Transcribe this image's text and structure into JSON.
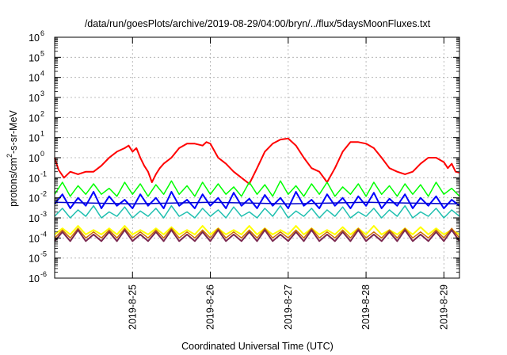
{
  "chart_data": {
    "type": "line",
    "title": "/data/run/goesPlots/archive/2019-08-29/04:00/bryn/../flux/5daysMoonFluxes.txt",
    "xlabel": "Coordinated Universal Time (UTC)",
    "ylabel": {
      "pre": "protons/cm",
      "sup": "2",
      "post": "-s-sr-MeV"
    },
    "yscale": "log",
    "ylim_exp": [
      -6,
      6
    ],
    "ytick_exps": [
      -6,
      -5,
      -4,
      -3,
      -2,
      -1,
      0,
      1,
      2,
      3,
      4,
      5,
      6
    ],
    "ytick_base": "10",
    "xlim": [
      0,
      5.2
    ],
    "xticks": [
      {
        "x": 1,
        "label": "2019-8-25"
      },
      {
        "x": 2,
        "label": "2019-8-26"
      },
      {
        "x": 3,
        "label": "2019-8-27"
      },
      {
        "x": 4,
        "label": "2019-8-28"
      },
      {
        "x": 5,
        "label": "2019-8-29"
      }
    ],
    "grid": true,
    "series": [
      {
        "color": "#ff0000",
        "width": 2,
        "x": [
          0,
          0.05,
          0.12,
          0.2,
          0.3,
          0.4,
          0.5,
          0.6,
          0.7,
          0.8,
          0.9,
          0.95,
          1.0,
          1.05,
          1.1,
          1.15,
          1.2,
          1.25,
          1.3,
          1.35,
          1.4,
          1.5,
          1.6,
          1.7,
          1.8,
          1.9,
          1.95,
          2.0,
          2.1,
          2.2,
          2.3,
          2.4,
          2.5,
          2.6,
          2.7,
          2.8,
          2.9,
          3.0,
          3.1,
          3.2,
          3.3,
          3.4,
          3.5,
          3.6,
          3.7,
          3.8,
          3.9,
          4.0,
          4.1,
          4.2,
          4.3,
          4.4,
          4.5,
          4.6,
          4.7,
          4.8,
          4.9,
          5.0,
          5.05,
          5.1,
          5.15,
          5.2
        ],
        "y": [
          1.0,
          0.25,
          0.1,
          0.2,
          0.15,
          0.2,
          0.2,
          0.4,
          1.0,
          2.0,
          3.0,
          4.0,
          2.0,
          3.0,
          1.0,
          0.4,
          0.2,
          0.06,
          0.15,
          0.3,
          0.5,
          1.0,
          3.0,
          5.0,
          5.0,
          4.0,
          6.0,
          5.0,
          1.0,
          0.5,
          0.2,
          0.1,
          0.05,
          0.3,
          2.0,
          5.0,
          8.0,
          9.0,
          4.0,
          1.0,
          0.3,
          0.2,
          0.06,
          0.3,
          2.0,
          6.0,
          6.0,
          5.0,
          3.0,
          1.0,
          0.3,
          0.2,
          0.15,
          0.2,
          0.5,
          1.0,
          1.0,
          0.6,
          0.3,
          0.5,
          0.2,
          0.18
        ]
      },
      {
        "color": "#00ff00",
        "width": 1.5,
        "x": [
          0,
          0.1,
          0.2,
          0.3,
          0.4,
          0.5,
          0.6,
          0.7,
          0.8,
          0.9,
          1.0,
          1.1,
          1.2,
          1.3,
          1.4,
          1.5,
          1.6,
          1.7,
          1.8,
          1.9,
          2.0,
          2.1,
          2.2,
          2.3,
          2.4,
          2.5,
          2.6,
          2.7,
          2.8,
          2.9,
          3.0,
          3.1,
          3.2,
          3.3,
          3.4,
          3.5,
          3.6,
          3.7,
          3.8,
          3.9,
          4.0,
          4.1,
          4.2,
          4.3,
          4.4,
          4.5,
          4.6,
          4.7,
          4.8,
          4.9,
          5.0,
          5.1,
          5.2
        ],
        "y": [
          0.015,
          0.06,
          0.012,
          0.04,
          0.015,
          0.05,
          0.015,
          0.03,
          0.012,
          0.06,
          0.015,
          0.05,
          0.012,
          0.045,
          0.015,
          0.07,
          0.015,
          0.04,
          0.012,
          0.06,
          0.015,
          0.05,
          0.015,
          0.035,
          0.012,
          0.06,
          0.015,
          0.045,
          0.012,
          0.07,
          0.015,
          0.04,
          0.012,
          0.05,
          0.015,
          0.06,
          0.012,
          0.035,
          0.015,
          0.05,
          0.012,
          0.06,
          0.015,
          0.04,
          0.012,
          0.05,
          0.015,
          0.045,
          0.012,
          0.06,
          0.015,
          0.03,
          0.012
        ]
      },
      {
        "color": "#0000ff",
        "width": 2,
        "x": [
          0,
          0.1,
          0.2,
          0.3,
          0.4,
          0.5,
          0.6,
          0.7,
          0.8,
          0.9,
          1.0,
          1.1,
          1.2,
          1.3,
          1.4,
          1.5,
          1.6,
          1.7,
          1.8,
          1.9,
          2.0,
          2.1,
          2.2,
          2.3,
          2.4,
          2.5,
          2.6,
          2.7,
          2.8,
          2.9,
          3.0,
          3.1,
          3.2,
          3.3,
          3.4,
          3.5,
          3.6,
          3.7,
          3.8,
          3.9,
          4.0,
          4.1,
          4.2,
          4.3,
          4.4,
          4.5,
          4.6,
          4.7,
          4.8,
          4.9,
          5.0,
          5.1,
          5.2
        ],
        "y": [
          0.005,
          0.015,
          0.003,
          0.01,
          0.004,
          0.02,
          0.003,
          0.012,
          0.004,
          0.008,
          0.003,
          0.015,
          0.004,
          0.01,
          0.003,
          0.02,
          0.004,
          0.008,
          0.003,
          0.015,
          0.004,
          0.01,
          0.003,
          0.018,
          0.004,
          0.009,
          0.003,
          0.014,
          0.004,
          0.01,
          0.003,
          0.02,
          0.004,
          0.008,
          0.003,
          0.015,
          0.004,
          0.01,
          0.003,
          0.012,
          0.004,
          0.018,
          0.003,
          0.009,
          0.004,
          0.015,
          0.003,
          0.01,
          0.004,
          0.012,
          0.003,
          0.008,
          0.004
        ]
      },
      {
        "color": "#0000cc",
        "width": 1.5,
        "x": [
          0,
          1,
          2,
          3,
          4,
          5.2
        ],
        "y": [
          0.006,
          0.005,
          0.006,
          0.005,
          0.006,
          0.005
        ]
      },
      {
        "color": "#20c0b0",
        "width": 1.5,
        "x": [
          0,
          0.1,
          0.2,
          0.3,
          0.4,
          0.5,
          0.6,
          0.7,
          0.8,
          0.9,
          1.0,
          1.1,
          1.2,
          1.3,
          1.4,
          1.5,
          1.6,
          1.7,
          1.8,
          1.9,
          2.0,
          2.1,
          2.2,
          2.3,
          2.4,
          2.5,
          2.6,
          2.7,
          2.8,
          2.9,
          3.0,
          3.1,
          3.2,
          3.3,
          3.4,
          3.5,
          3.6,
          3.7,
          3.8,
          3.9,
          4.0,
          4.1,
          4.2,
          4.3,
          4.4,
          4.5,
          4.6,
          4.7,
          4.8,
          4.9,
          5.0,
          5.1,
          5.2
        ],
        "y": [
          0.0012,
          0.003,
          0.001,
          0.0025,
          0.0012,
          0.004,
          0.001,
          0.002,
          0.0012,
          0.0035,
          0.001,
          0.0022,
          0.0012,
          0.003,
          0.001,
          0.004,
          0.0012,
          0.002,
          0.001,
          0.003,
          0.0012,
          0.0025,
          0.001,
          0.0035,
          0.0012,
          0.002,
          0.001,
          0.003,
          0.0012,
          0.004,
          0.001,
          0.0022,
          0.0012,
          0.003,
          0.001,
          0.0025,
          0.0012,
          0.0035,
          0.001,
          0.002,
          0.0012,
          0.003,
          0.001,
          0.0025,
          0.0012,
          0.004,
          0.001,
          0.002,
          0.0012,
          0.003,
          0.001,
          0.0025,
          0.0012
        ]
      },
      {
        "color": "#ffff00",
        "width": 2,
        "x": [
          0,
          0.1,
          0.2,
          0.3,
          0.4,
          0.5,
          0.6,
          0.7,
          0.8,
          0.9,
          1.0,
          1.1,
          1.2,
          1.3,
          1.4,
          1.5,
          1.6,
          1.7,
          1.8,
          1.9,
          2.0,
          2.1,
          2.2,
          2.3,
          2.4,
          2.5,
          2.6,
          2.7,
          2.8,
          2.9,
          3.0,
          3.1,
          3.2,
          3.3,
          3.4,
          3.5,
          3.6,
          3.7,
          3.8,
          3.9,
          4.0,
          4.1,
          4.2,
          4.3,
          4.4,
          4.5,
          4.6,
          4.7,
          4.8,
          4.9,
          5.0,
          5.1,
          5.2
        ],
        "y": [
          0.00015,
          0.0003,
          0.00015,
          0.0004,
          0.00015,
          0.00025,
          0.00015,
          0.0003,
          0.00015,
          0.0004,
          0.00015,
          0.00025,
          0.00015,
          0.0003,
          0.00015,
          0.00035,
          0.00015,
          0.00025,
          0.00015,
          0.0004,
          0.00015,
          0.0003,
          0.00015,
          0.00025,
          0.00015,
          0.0004,
          0.00015,
          0.0003,
          0.00015,
          0.00025,
          0.00015,
          0.0004,
          0.00015,
          0.0003,
          0.00015,
          0.00025,
          0.00015,
          0.00035,
          0.00015,
          0.0003,
          0.00015,
          0.0004,
          0.00015,
          0.00025,
          0.00015,
          0.0003,
          0.00015,
          0.00035,
          0.00015,
          0.0003,
          0.00015,
          0.00025,
          0.00015
        ]
      },
      {
        "color": "#d07000",
        "width": 1.5,
        "x": [
          0,
          0.1,
          0.2,
          0.3,
          0.4,
          0.5,
          0.6,
          0.7,
          0.8,
          0.9,
          1.0,
          1.1,
          1.2,
          1.3,
          1.4,
          1.5,
          1.6,
          1.7,
          1.8,
          1.9,
          2.0,
          2.1,
          2.2,
          2.3,
          2.4,
          2.5,
          2.6,
          2.7,
          2.8,
          2.9,
          3.0,
          3.1,
          3.2,
          3.3,
          3.4,
          3.5,
          3.6,
          3.7,
          3.8,
          3.9,
          4.0,
          4.1,
          4.2,
          4.3,
          4.4,
          4.5,
          4.6,
          4.7,
          4.8,
          4.9,
          5.0,
          5.1,
          5.2
        ],
        "y": [
          0.0001,
          0.00025,
          0.0001,
          0.0003,
          0.0001,
          0.0002,
          0.0001,
          0.00025,
          0.0001,
          0.0003,
          0.0001,
          0.0002,
          0.0001,
          0.00025,
          0.0001,
          0.0003,
          0.0001,
          0.0002,
          0.0001,
          0.00025,
          0.0001,
          0.0003,
          0.0001,
          0.0002,
          0.0001,
          0.00025,
          0.0001,
          0.0003,
          0.0001,
          0.0002,
          0.0001,
          0.00025,
          0.0001,
          0.0003,
          0.0001,
          0.0002,
          0.0001,
          0.00025,
          0.0001,
          0.0003,
          0.0001,
          0.0002,
          0.0001,
          0.00025,
          0.0001,
          0.0003,
          0.0001,
          0.0002,
          0.0001,
          0.00025,
          0.0001,
          0.0003,
          0.0001
        ]
      },
      {
        "color": "#7a2850",
        "width": 2,
        "x": [
          0,
          0.1,
          0.2,
          0.3,
          0.4,
          0.5,
          0.6,
          0.7,
          0.8,
          0.9,
          1.0,
          1.1,
          1.2,
          1.3,
          1.4,
          1.5,
          1.6,
          1.7,
          1.8,
          1.9,
          2.0,
          2.1,
          2.2,
          2.3,
          2.4,
          2.5,
          2.6,
          2.7,
          2.8,
          2.9,
          3.0,
          3.1,
          3.2,
          3.3,
          3.4,
          3.5,
          3.6,
          3.7,
          3.8,
          3.9,
          4.0,
          4.1,
          4.2,
          4.3,
          4.4,
          4.5,
          4.6,
          4.7,
          4.8,
          4.9,
          5.0,
          5.1,
          5.2
        ],
        "y": [
          7e-05,
          0.0002,
          7e-05,
          0.00025,
          7e-05,
          0.00015,
          7e-05,
          0.0002,
          7e-05,
          0.00025,
          7e-05,
          0.00015,
          7e-05,
          0.0002,
          7e-05,
          0.00025,
          7e-05,
          0.00015,
          7e-05,
          0.0002,
          7e-05,
          0.00025,
          7e-05,
          0.00015,
          7e-05,
          0.0002,
          7e-05,
          0.00025,
          7e-05,
          0.00015,
          7e-05,
          0.0002,
          7e-05,
          0.00025,
          7e-05,
          0.00015,
          7e-05,
          0.0002,
          7e-05,
          0.00025,
          7e-05,
          0.00015,
          7e-05,
          0.0002,
          7e-05,
          0.00025,
          7e-05,
          0.00015,
          7e-05,
          0.0002,
          7e-05,
          0.00025,
          7e-05
        ]
      }
    ]
  }
}
